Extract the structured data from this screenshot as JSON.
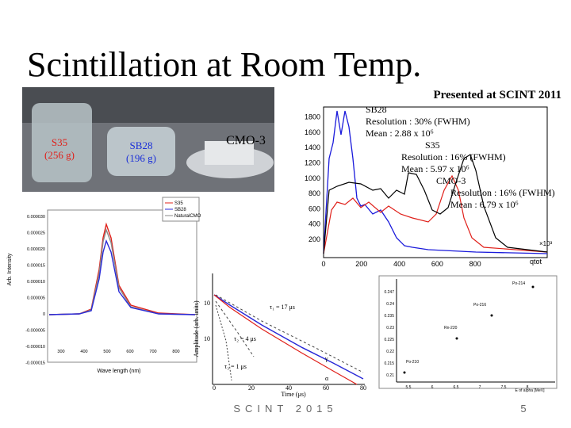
{
  "header": {
    "title": "Scintillation at Room Temp.",
    "subtitle": "Presented at SCINT 2011"
  },
  "photo": {
    "labels": [
      {
        "name": "S35",
        "mass": "(256 g)"
      },
      {
        "name": "SB28",
        "mass": "(196 g)"
      },
      {
        "name": "CMO-3"
      }
    ]
  },
  "histogram": {
    "yticks": [
      "200",
      "400",
      "600",
      "800",
      "1000",
      "1200",
      "1400",
      "1600",
      "1800"
    ],
    "xticks": [
      "0",
      "200",
      "400",
      "600",
      "800"
    ],
    "x_unit": "×10³",
    "x_label": "qtot",
    "annotations": [
      "SB28",
      "Resolution : 30% (FWHM)",
      "Mean : 2.88 x 10⁶",
      "S35",
      "Resolution : 16% (FWHM)",
      "Mean : 5.97 x 10⁶",
      "CMO-3",
      "Resolution : 16% (FWHM)",
      "Mean : 6.79 x 10⁶"
    ]
  },
  "spectrum": {
    "legend": [
      "S35",
      "SB28",
      "NaturalCMO"
    ],
    "yticks": [
      "0.000030",
      "0.000025",
      "0.000020",
      "0.000015",
      "0.000010",
      "0.000005",
      "0",
      "-0.000005",
      "-0.000010",
      "-0.000015"
    ],
    "xticks": [
      "300",
      "400",
      "500",
      "600",
      "700",
      "800"
    ],
    "x_label": "Wave length (nm)",
    "y_label": "Arb. Intensity"
  },
  "decay": {
    "yticks": [
      "10",
      "10"
    ],
    "xticks": [
      "0",
      "20",
      "40",
      "60",
      "80"
    ],
    "x_label": "Time (μs)",
    "y_label": "Amplitude (arb. units)",
    "annotations": [
      "τ₁ = 17 μs",
      "τ₂ = 4 μs",
      "τ₃ = 1 μs",
      "γ",
      "α"
    ]
  },
  "alpha": {
    "peaks": [
      "Po-214",
      "Po-216",
      "Rn-220",
      "Po-210"
    ],
    "yticks": [
      "0.247",
      "0.24",
      "0.235",
      "0.23",
      "0.225",
      "0.22",
      "0.215",
      "0.21"
    ],
    "xticks": [
      "5.5",
      "6",
      "6.5",
      "7",
      "7.5",
      "8"
    ],
    "x_label": "E of alpha [MeV]"
  },
  "footer": {
    "event": "SCINT 2015",
    "page": "5"
  }
}
